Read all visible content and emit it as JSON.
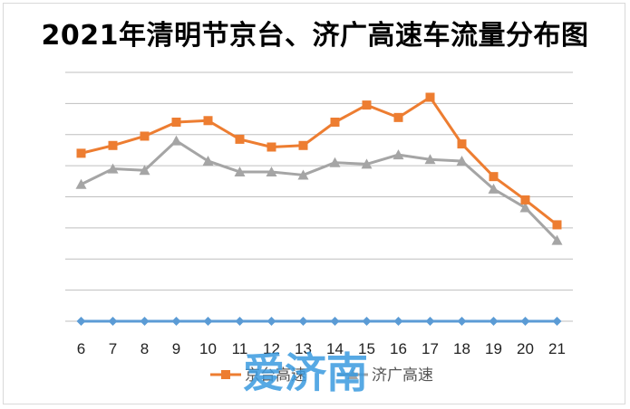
{
  "chart_data": {
    "type": "line",
    "title": "2021年清明节京台、济广高速车流量分布图",
    "categories": [
      "6",
      "7",
      "8",
      "9",
      "10",
      "11",
      "12",
      "13",
      "14",
      "15",
      "16",
      "17",
      "18",
      "19",
      "20",
      "21"
    ],
    "series": [
      {
        "name": "京台高速",
        "color": "#ed7d31",
        "marker": "square",
        "values": [
          5.4,
          5.65,
          5.95,
          6.4,
          6.45,
          5.85,
          5.6,
          5.65,
          6.4,
          6.95,
          6.55,
          7.2,
          5.7,
          4.65,
          3.9,
          3.1
        ]
      },
      {
        "name": "济广高速",
        "color": "#a5a5a5",
        "marker": "triangle",
        "values": [
          4.4,
          4.9,
          4.85,
          5.8,
          5.15,
          4.8,
          4.8,
          4.7,
          5.1,
          5.05,
          5.35,
          5.2,
          5.15,
          4.25,
          3.65,
          2.6
        ]
      },
      {
        "name": "",
        "color": "#5b9bd5",
        "marker": "diamond",
        "values": [
          0,
          0,
          0,
          0,
          0,
          0,
          0,
          0,
          0,
          0,
          0,
          0,
          0,
          0,
          0,
          0
        ]
      }
    ],
    "ylim": [
      0,
      8
    ],
    "grid": true,
    "legend": "bottom"
  },
  "watermark": "爱济南"
}
